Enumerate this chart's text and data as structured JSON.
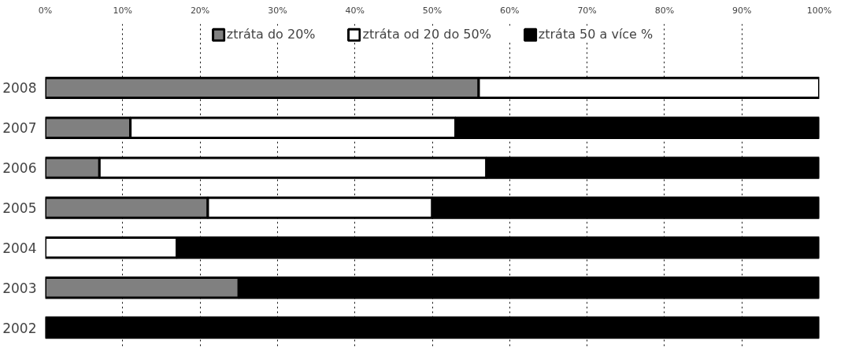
{
  "chart_data": {
    "type": "bar",
    "orientation": "horizontal",
    "stacked": true,
    "categories": [
      "2008",
      "2007",
      "2006",
      "2005",
      "2004",
      "2003",
      "2002"
    ],
    "series": [
      {
        "name": "ztráta do 20%",
        "color": "#808080",
        "values": [
          56,
          11,
          7,
          21,
          0,
          25,
          0
        ]
      },
      {
        "name": "ztráta od 20 do 50%",
        "color": "#ffffff",
        "values": [
          44,
          42,
          50,
          29,
          17,
          0,
          0
        ]
      },
      {
        "name": "ztráta 50 a více %",
        "color": "#000000",
        "values": [
          0,
          47,
          43,
          50,
          83,
          75,
          100
        ]
      }
    ],
    "xlim": [
      0,
      100
    ],
    "xticks": [
      {
        "value": 0,
        "label": "0%"
      },
      {
        "value": 10,
        "label": "10%"
      },
      {
        "value": 20,
        "label": "20%"
      },
      {
        "value": 30,
        "label": "30%"
      },
      {
        "value": 40,
        "label": "40%"
      },
      {
        "value": 50,
        "label": "50%"
      },
      {
        "value": 60,
        "label": "60%"
      },
      {
        "value": 70,
        "label": "70%"
      },
      {
        "value": 80,
        "label": "80%"
      },
      {
        "value": 90,
        "label": "90%"
      },
      {
        "value": 100,
        "label": "100%"
      }
    ],
    "grid": "x",
    "legend": "top"
  }
}
